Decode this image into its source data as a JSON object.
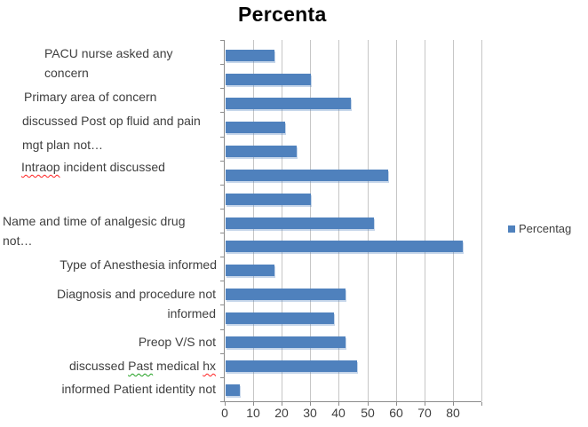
{
  "title": "Percenta",
  "legend": {
    "label": "Percentag"
  },
  "colors": {
    "bar": "#4F81BD",
    "gridline": "#C6C6C6",
    "axis": "#8C8C8C",
    "label_text": "#3F3F3F",
    "title_text": "#000000",
    "squiggle_red": "#FF2020",
    "squiggle_green": "#1F9F1F"
  },
  "spellcheck": [
    {
      "category": 5,
      "word": "Intraop",
      "style": "red"
    },
    {
      "category": 13,
      "word": "Past",
      "style": "green"
    },
    {
      "category": 13,
      "word": "hx",
      "style": "red"
    }
  ],
  "chart_data": {
    "type": "bar",
    "orientation": "horizontal",
    "title": "Percenta",
    "legend_entries": [
      "Percentag"
    ],
    "legend_position": "right",
    "xlabel": "",
    "ylabel": "",
    "xlim": [
      0,
      90
    ],
    "x_ticks": [
      0,
      10,
      20,
      30,
      40,
      50,
      60,
      70,
      80
    ],
    "gridlines": true,
    "categories": [
      "PACU nurse asked any concern",
      "",
      "Primary area of concern",
      "discussed Post op fluid and pain",
      "mgt plan not…",
      "Intraop incident discussed",
      "",
      "Name and time of analgesic drug not…",
      "",
      "Type of Anesthesia informed",
      "Diagnosis and procedure not informed",
      "",
      "Preop V/S not",
      "discussed Past medical hx",
      "informed Patient identity not"
    ],
    "series": [
      {
        "name": "Percentag",
        "values": [
          17,
          30,
          44,
          21,
          25,
          57,
          30,
          52,
          83,
          17,
          42,
          38,
          42,
          46,
          5
        ]
      }
    ]
  }
}
